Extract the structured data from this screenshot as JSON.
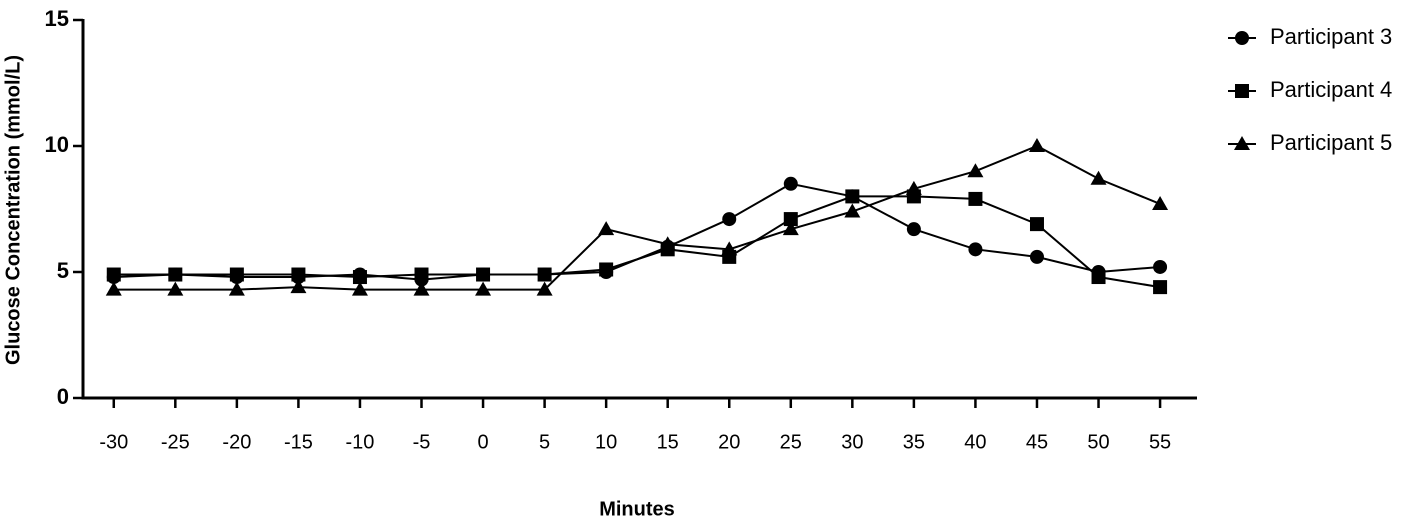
{
  "chart_data": {
    "type": "line",
    "x_label": "Minutes",
    "y_label": "Glucose Concentration (mmol/L)",
    "x": [
      -30,
      -25,
      -20,
      -15,
      -10,
      -5,
      0,
      5,
      10,
      15,
      20,
      25,
      30,
      35,
      40,
      45,
      50,
      55
    ],
    "xlim": [
      -32.5,
      58
    ],
    "xticks": [
      -30,
      -25,
      -20,
      -15,
      -10,
      -5,
      0,
      5,
      10,
      15,
      20,
      25,
      30,
      35,
      40,
      45,
      50,
      55
    ],
    "ylim": [
      0,
      15
    ],
    "yticks": [
      0,
      5,
      10,
      15
    ],
    "legend": "right",
    "series": [
      {
        "name": "Participant 3",
        "color": "#000000",
        "marker": "circle",
        "values": [
          4.8,
          4.9,
          4.8,
          4.8,
          4.9,
          4.7,
          4.9,
          4.9,
          5.0,
          6.0,
          7.1,
          8.5,
          8.0,
          6.7,
          5.9,
          5.6,
          5.0,
          5.2
        ]
      },
      {
        "name": "Participant 4",
        "color": "#000000",
        "marker": "square",
        "values": [
          4.9,
          4.9,
          4.9,
          4.9,
          4.8,
          4.9,
          4.9,
          4.9,
          5.1,
          5.9,
          5.6,
          7.1,
          8.0,
          8.0,
          7.9,
          6.9,
          4.8,
          4.4
        ]
      },
      {
        "name": "Participant 5",
        "color": "#000000",
        "marker": "triangle",
        "values": [
          4.3,
          4.3,
          4.3,
          4.4,
          4.3,
          4.3,
          4.3,
          4.3,
          6.7,
          6.1,
          5.9,
          6.7,
          7.4,
          8.3,
          9.0,
          10.0,
          8.7,
          7.7
        ]
      }
    ]
  }
}
